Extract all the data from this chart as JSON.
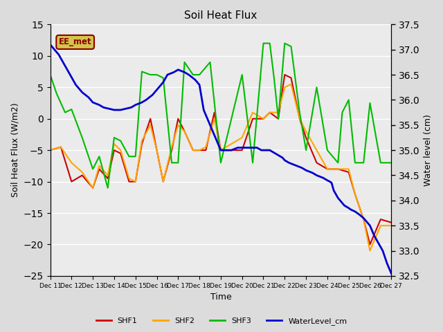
{
  "title": "Soil Heat Flux",
  "xlabel": "Time",
  "ylabel_left": "Soil Heat Flux (W/m2)",
  "ylabel_right": "Water level (cm)",
  "ylim_left": [
    -25,
    15
  ],
  "ylim_right": [
    32.5,
    37.5
  ],
  "background_color": "#dcdcdc",
  "plot_bg_color": "#ebebeb",
  "annotation_text": "EE_met",
  "annotation_box_color": "#d4c44c",
  "annotation_text_color": "#8b0000",
  "SHF1": {
    "x": [
      11.0,
      11.5,
      12.0,
      12.5,
      13.0,
      13.3,
      13.7,
      14.0,
      14.3,
      14.7,
      15.0,
      15.3,
      15.7,
      16.0,
      16.3,
      16.7,
      17.0,
      17.3,
      17.7,
      18.0,
      18.3,
      18.7,
      19.0,
      19.5,
      20.0,
      20.5,
      21.0,
      21.3,
      21.7,
      22.0,
      22.3,
      22.7,
      23.0,
      23.5,
      24.0,
      24.5,
      25.0,
      25.3,
      25.7,
      26.0,
      26.5,
      27.0
    ],
    "y": [
      -5.0,
      -4.5,
      -10.0,
      -9.0,
      -11.0,
      -8.0,
      -9.5,
      -5.0,
      -5.5,
      -10.0,
      -10.0,
      -4.0,
      0.0,
      -5.0,
      -10.0,
      -5.0,
      0.0,
      -2.0,
      -5.0,
      -5.0,
      -5.0,
      1.0,
      -5.0,
      -5.0,
      -5.0,
      0.0,
      0.0,
      1.0,
      0.0,
      7.0,
      6.5,
      0.0,
      -3.0,
      -7.0,
      -8.0,
      -8.0,
      -8.5,
      -12.0,
      -16.0,
      -20.0,
      -16.0,
      -16.5
    ],
    "color": "#cc0000",
    "lw": 1.5
  },
  "SHF2": {
    "x": [
      11.0,
      11.5,
      12.0,
      12.5,
      13.0,
      13.3,
      13.7,
      14.0,
      14.3,
      14.7,
      15.0,
      15.3,
      15.7,
      16.0,
      16.3,
      16.7,
      17.0,
      17.3,
      17.7,
      18.0,
      18.3,
      18.7,
      19.0,
      19.5,
      20.0,
      20.5,
      21.0,
      21.3,
      21.7,
      22.0,
      22.3,
      22.7,
      23.0,
      23.5,
      24.0,
      24.5,
      25.0,
      25.3,
      25.7,
      26.0,
      26.5,
      27.0
    ],
    "y": [
      -5.0,
      -4.5,
      -7.0,
      -8.5,
      -11.0,
      -7.5,
      -9.0,
      -4.0,
      -5.0,
      -9.5,
      -10.0,
      -3.5,
      -1.0,
      -5.0,
      -10.0,
      -4.5,
      -1.0,
      -2.0,
      -5.0,
      -5.0,
      -4.5,
      0.0,
      -5.0,
      -4.0,
      -3.0,
      1.0,
      0.0,
      1.0,
      1.0,
      5.0,
      5.5,
      0.0,
      -2.0,
      -5.0,
      -8.0,
      -8.0,
      -8.0,
      -12.0,
      -16.0,
      -21.0,
      -17.0,
      -17.0
    ],
    "color": "#ffa500",
    "lw": 1.5
  },
  "SHF3": {
    "x": [
      11.0,
      11.3,
      11.7,
      12.0,
      12.5,
      13.0,
      13.3,
      13.7,
      14.0,
      14.3,
      14.7,
      15.0,
      15.3,
      15.7,
      16.0,
      16.3,
      16.7,
      17.0,
      17.3,
      17.7,
      18.0,
      18.5,
      19.0,
      19.5,
      20.0,
      20.5,
      21.0,
      21.3,
      21.5,
      21.7,
      22.0,
      22.3,
      22.7,
      23.0,
      23.5,
      24.0,
      24.5,
      24.7,
      25.0,
      25.3,
      25.7,
      26.0,
      26.5,
      27.0
    ],
    "y": [
      7.0,
      4.0,
      1.0,
      1.5,
      -3.0,
      -8.0,
      -6.0,
      -11.0,
      -3.0,
      -3.5,
      -6.0,
      -6.0,
      7.5,
      7.0,
      7.0,
      6.5,
      -7.0,
      -7.0,
      9.0,
      7.0,
      7.0,
      9.0,
      -7.0,
      0.0,
      7.0,
      -7.0,
      12.0,
      12.0,
      6.5,
      0.0,
      12.0,
      11.5,
      1.0,
      -5.0,
      5.0,
      -5.0,
      -7.0,
      1.0,
      3.0,
      -7.0,
      -7.0,
      2.5,
      -7.0,
      -7.0
    ],
    "color": "#00bb00",
    "lw": 1.5
  },
  "WaterLevel": {
    "x": [
      11.0,
      11.1,
      11.2,
      11.4,
      11.6,
      11.8,
      12.0,
      12.2,
      12.5,
      12.8,
      13.0,
      13.3,
      13.5,
      13.8,
      14.0,
      14.3,
      14.5,
      14.8,
      15.0,
      15.3,
      15.5,
      15.8,
      16.0,
      16.3,
      16.5,
      16.8,
      17.0,
      17.3,
      17.5,
      17.8,
      18.0,
      18.2,
      18.5,
      18.8,
      19.0,
      19.1,
      19.2,
      19.3,
      19.5,
      19.8,
      20.0,
      20.1,
      20.2,
      20.3,
      20.5,
      20.7,
      20.9,
      21.0,
      21.1,
      21.2,
      21.3,
      21.5,
      21.7,
      21.9,
      22.0,
      22.2,
      22.5,
      22.8,
      23.0,
      23.3,
      23.5,
      23.8,
      24.0,
      24.1,
      24.2,
      24.3,
      24.5,
      24.6,
      24.7,
      24.8,
      25.0,
      25.1,
      25.2,
      25.3,
      25.4,
      25.5,
      25.7,
      25.9,
      26.0,
      26.1,
      26.2,
      26.4,
      26.6,
      26.8,
      27.0
    ],
    "y": [
      37.1,
      37.05,
      37.0,
      36.9,
      36.75,
      36.6,
      36.45,
      36.3,
      36.15,
      36.05,
      35.95,
      35.9,
      35.85,
      35.82,
      35.8,
      35.8,
      35.82,
      35.85,
      35.9,
      35.95,
      36.0,
      36.1,
      36.2,
      36.35,
      36.5,
      36.55,
      36.6,
      36.55,
      36.5,
      36.4,
      36.3,
      35.8,
      35.5,
      35.2,
      35.0,
      35.0,
      35.0,
      35.0,
      35.0,
      35.05,
      35.05,
      35.05,
      35.05,
      35.05,
      35.05,
      35.05,
      35.0,
      35.0,
      35.0,
      35.0,
      35.0,
      34.95,
      34.9,
      34.85,
      34.8,
      34.75,
      34.7,
      34.65,
      34.6,
      34.55,
      34.5,
      34.45,
      34.4,
      34.38,
      34.35,
      34.2,
      34.05,
      34.0,
      33.95,
      33.9,
      33.85,
      33.82,
      33.8,
      33.78,
      33.75,
      33.72,
      33.65,
      33.55,
      33.5,
      33.4,
      33.3,
      33.15,
      33.0,
      32.75,
      32.55
    ],
    "color": "#0000cc",
    "lw": 2.0
  },
  "yticks_left": [
    -25,
    -20,
    -15,
    -10,
    -5,
    0,
    5,
    10,
    15
  ],
  "yticks_right": [
    32.5,
    33.0,
    33.5,
    34.0,
    34.5,
    35.0,
    35.5,
    36.0,
    36.5,
    37.0,
    37.5
  ],
  "xticks": [
    11,
    12,
    13,
    14,
    15,
    16,
    17,
    18,
    19,
    20,
    21,
    22,
    23,
    24,
    25,
    26,
    27
  ],
  "x_tick_labels": [
    "Dec 11",
    "Dec 12",
    "Dec 13",
    "Dec 14",
    "Dec 15",
    "Dec 16",
    "Dec 17",
    "Dec 18",
    "Dec 19",
    "Dec 20",
    "Dec 21",
    "Dec 22",
    "Dec 23",
    "Dec 24",
    "Dec 25",
    "Dec 26",
    "Dec 27"
  ]
}
